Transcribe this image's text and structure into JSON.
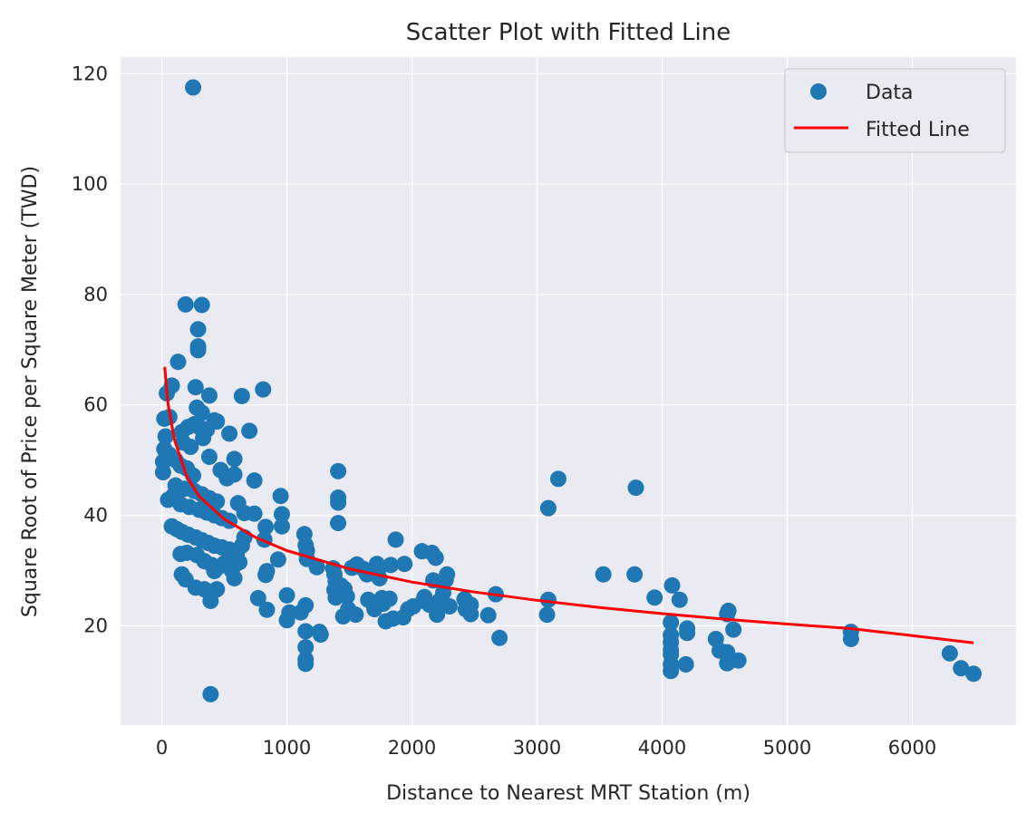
{
  "chart_data": {
    "type": "scatter",
    "title": "Scatter Plot with Fitted Line",
    "xlabel": "Distance to Nearest MRT Station (m)",
    "ylabel": "Square Root of Price per Square Meter (TWD)",
    "xlim": [
      -330,
      6830
    ],
    "ylim": [
      2,
      123
    ],
    "xticks": [
      0,
      1000,
      2000,
      3000,
      4000,
      5000,
      6000
    ],
    "yticks": [
      20,
      40,
      60,
      80,
      100,
      120
    ],
    "grid": true,
    "legend_position": "top-right",
    "colors": {
      "points": "#1f77b4",
      "line": "#ff0000",
      "background": "#eaeaf2",
      "grid": "#ffffff"
    },
    "series": [
      {
        "name": "Data",
        "kind": "scatter",
        "points": [
          [
            250,
            117.5
          ],
          [
            190,
            78.2
          ],
          [
            320,
            78.1
          ],
          [
            290,
            73.7
          ],
          [
            290,
            70.6
          ],
          [
            290,
            69.9
          ],
          [
            130,
            67.8
          ],
          [
            80,
            63.5
          ],
          [
            270,
            63.2
          ],
          [
            40,
            62.1
          ],
          [
            380,
            61.7
          ],
          [
            640,
            61.6
          ],
          [
            810,
            62.8
          ],
          [
            20,
            57.5
          ],
          [
            60,
            57.8
          ],
          [
            280,
            59.5
          ],
          [
            320,
            58.6
          ],
          [
            420,
            57.2
          ],
          [
            440,
            57.0
          ],
          [
            700,
            55.3
          ],
          [
            540,
            54.8
          ],
          [
            30,
            54.3
          ],
          [
            160,
            55.1
          ],
          [
            210,
            56.0
          ],
          [
            260,
            56.5
          ],
          [
            300,
            56.0
          ],
          [
            360,
            55.5
          ],
          [
            330,
            54.0
          ],
          [
            170,
            53.2
          ],
          [
            230,
            52.4
          ],
          [
            20,
            52.0
          ],
          [
            60,
            51.0
          ],
          [
            110,
            50.0
          ],
          [
            150,
            49.0
          ],
          [
            200,
            48.5
          ],
          [
            250,
            47.2
          ],
          [
            10,
            49.7
          ],
          [
            10,
            47.8
          ],
          [
            380,
            50.6
          ],
          [
            580,
            50.2
          ],
          [
            470,
            48.2
          ],
          [
            520,
            46.7
          ],
          [
            740,
            46.3
          ],
          [
            580,
            47.4
          ],
          [
            110,
            45.4
          ],
          [
            180,
            44.8
          ],
          [
            260,
            44.4
          ],
          [
            320,
            43.8
          ],
          [
            380,
            43.1
          ],
          [
            440,
            42.5
          ],
          [
            50,
            42.8
          ],
          [
            90,
            43.5
          ],
          [
            150,
            42.0
          ],
          [
            220,
            41.5
          ],
          [
            300,
            41.0
          ],
          [
            360,
            40.5
          ],
          [
            420,
            40.0
          ],
          [
            480,
            39.5
          ],
          [
            540,
            39.0
          ],
          [
            610,
            42.2
          ],
          [
            660,
            40.4
          ],
          [
            740,
            40.3
          ],
          [
            830,
            37.9
          ],
          [
            960,
            40.2
          ],
          [
            960,
            38.0
          ],
          [
            950,
            43.5
          ],
          [
            80,
            38.0
          ],
          [
            120,
            37.5
          ],
          [
            160,
            37.0
          ],
          [
            210,
            36.5
          ],
          [
            270,
            36.0
          ],
          [
            320,
            35.5
          ],
          [
            370,
            35.0
          ],
          [
            420,
            34.5
          ],
          [
            480,
            34.2
          ],
          [
            540,
            33.8
          ],
          [
            600,
            33.1
          ],
          [
            640,
            34.5
          ],
          [
            660,
            36.0
          ],
          [
            820,
            35.6
          ],
          [
            150,
            33.0
          ],
          [
            200,
            33.2
          ],
          [
            280,
            32.8
          ],
          [
            340,
            31.7
          ],
          [
            400,
            31.0
          ],
          [
            420,
            29.9
          ],
          [
            450,
            30.6
          ],
          [
            500,
            31.3
          ],
          [
            560,
            30.0
          ],
          [
            620,
            31.5
          ],
          [
            580,
            28.6
          ],
          [
            930,
            32.0
          ],
          [
            830,
            29.2
          ],
          [
            840,
            29.9
          ],
          [
            160,
            29.3
          ],
          [
            190,
            28.4
          ],
          [
            270,
            26.9
          ],
          [
            340,
            26.6
          ],
          [
            390,
            24.5
          ],
          [
            440,
            26.6
          ],
          [
            770,
            25.0
          ],
          [
            840,
            22.9
          ],
          [
            390,
            7.6
          ],
          [
            1000,
            25.5
          ],
          [
            1000,
            21.0
          ],
          [
            1020,
            22.4
          ],
          [
            1110,
            22.4
          ],
          [
            1150,
            23.7
          ],
          [
            1150,
            19.0
          ],
          [
            1150,
            16.1
          ],
          [
            1150,
            13.9
          ],
          [
            1150,
            13.1
          ],
          [
            1260,
            18.9
          ],
          [
            1270,
            18.4
          ],
          [
            1140,
            36.6
          ],
          [
            1150,
            34.6
          ],
          [
            1160,
            33.6
          ],
          [
            1160,
            32.1
          ],
          [
            1240,
            30.6
          ],
          [
            1370,
            30.4
          ],
          [
            1380,
            29.3
          ],
          [
            1390,
            28.0
          ],
          [
            1410,
            38.6
          ],
          [
            1410,
            42.3
          ],
          [
            1410,
            43.2
          ],
          [
            1410,
            48.0
          ],
          [
            1380,
            26.5
          ],
          [
            1390,
            25.1
          ],
          [
            1430,
            27.3
          ],
          [
            1460,
            26.7
          ],
          [
            1480,
            25.3
          ],
          [
            1450,
            21.7
          ],
          [
            1490,
            23.0
          ],
          [
            1550,
            22.0
          ],
          [
            1520,
            30.5
          ],
          [
            1560,
            31.1
          ],
          [
            1610,
            30.3
          ],
          [
            1640,
            29.3
          ],
          [
            1650,
            24.7
          ],
          [
            1700,
            23.0
          ],
          [
            1720,
            31.2
          ],
          [
            1730,
            30.1
          ],
          [
            1740,
            28.6
          ],
          [
            1760,
            25.0
          ],
          [
            1770,
            24.0
          ],
          [
            1790,
            20.8
          ],
          [
            1820,
            24.9
          ],
          [
            1830,
            31.0
          ],
          [
            1850,
            21.3
          ],
          [
            1870,
            35.6
          ],
          [
            1930,
            21.5
          ],
          [
            1940,
            31.2
          ],
          [
            1970,
            23.0
          ],
          [
            2010,
            23.5
          ],
          [
            2080,
            33.5
          ],
          [
            2090,
            24.5
          ],
          [
            2100,
            25.2
          ],
          [
            2140,
            23.8
          ],
          [
            2160,
            33.2
          ],
          [
            2170,
            28.2
          ],
          [
            2190,
            32.3
          ],
          [
            2200,
            22.0
          ],
          [
            2220,
            24.5
          ],
          [
            2250,
            26.0
          ],
          [
            2270,
            28.3
          ],
          [
            2280,
            29.3
          ],
          [
            2300,
            23.5
          ],
          [
            2420,
            24.8
          ],
          [
            2430,
            23.0
          ],
          [
            2470,
            22.1
          ],
          [
            2470,
            23.8
          ],
          [
            2610,
            21.9
          ],
          [
            2670,
            25.7
          ],
          [
            2700,
            17.8
          ],
          [
            3080,
            22.0
          ],
          [
            3090,
            24.7
          ],
          [
            3090,
            41.3
          ],
          [
            3170,
            46.6
          ],
          [
            3530,
            29.3
          ],
          [
            3780,
            29.3
          ],
          [
            3790,
            45.0
          ],
          [
            3940,
            25.1
          ],
          [
            4070,
            11.8
          ],
          [
            4070,
            13.0
          ],
          [
            4070,
            14.8
          ],
          [
            4070,
            15.6
          ],
          [
            4070,
            17.0
          ],
          [
            4070,
            18.3
          ],
          [
            4070,
            20.6
          ],
          [
            4080,
            27.3
          ],
          [
            4140,
            24.7
          ],
          [
            4190,
            13.0
          ],
          [
            4200,
            18.7
          ],
          [
            4200,
            19.5
          ],
          [
            4430,
            17.6
          ],
          [
            4460,
            15.5
          ],
          [
            4520,
            13.2
          ],
          [
            4520,
            15.2
          ],
          [
            4520,
            22.1
          ],
          [
            4530,
            22.7
          ],
          [
            4570,
            19.3
          ],
          [
            4610,
            13.7
          ],
          [
            5510,
            17.6
          ],
          [
            5510,
            18.9
          ],
          [
            6300,
            15.0
          ],
          [
            6390,
            12.3
          ],
          [
            6490,
            11.3
          ]
        ]
      },
      {
        "name": "Fitted Line",
        "kind": "line",
        "x": [
          23,
          50,
          100,
          200,
          300,
          500,
          750,
          1000,
          1500,
          2000,
          2500,
          3000,
          3500,
          4000,
          4500,
          5000,
          5500,
          6000,
          6490
        ],
        "y": [
          66.9,
          60.2,
          53.8,
          47.0,
          43.4,
          39.3,
          36.0,
          33.6,
          30.3,
          27.9,
          26.1,
          24.6,
          23.3,
          22.2,
          21.2,
          20.3,
          19.5,
          18.2,
          16.9
        ]
      }
    ]
  }
}
